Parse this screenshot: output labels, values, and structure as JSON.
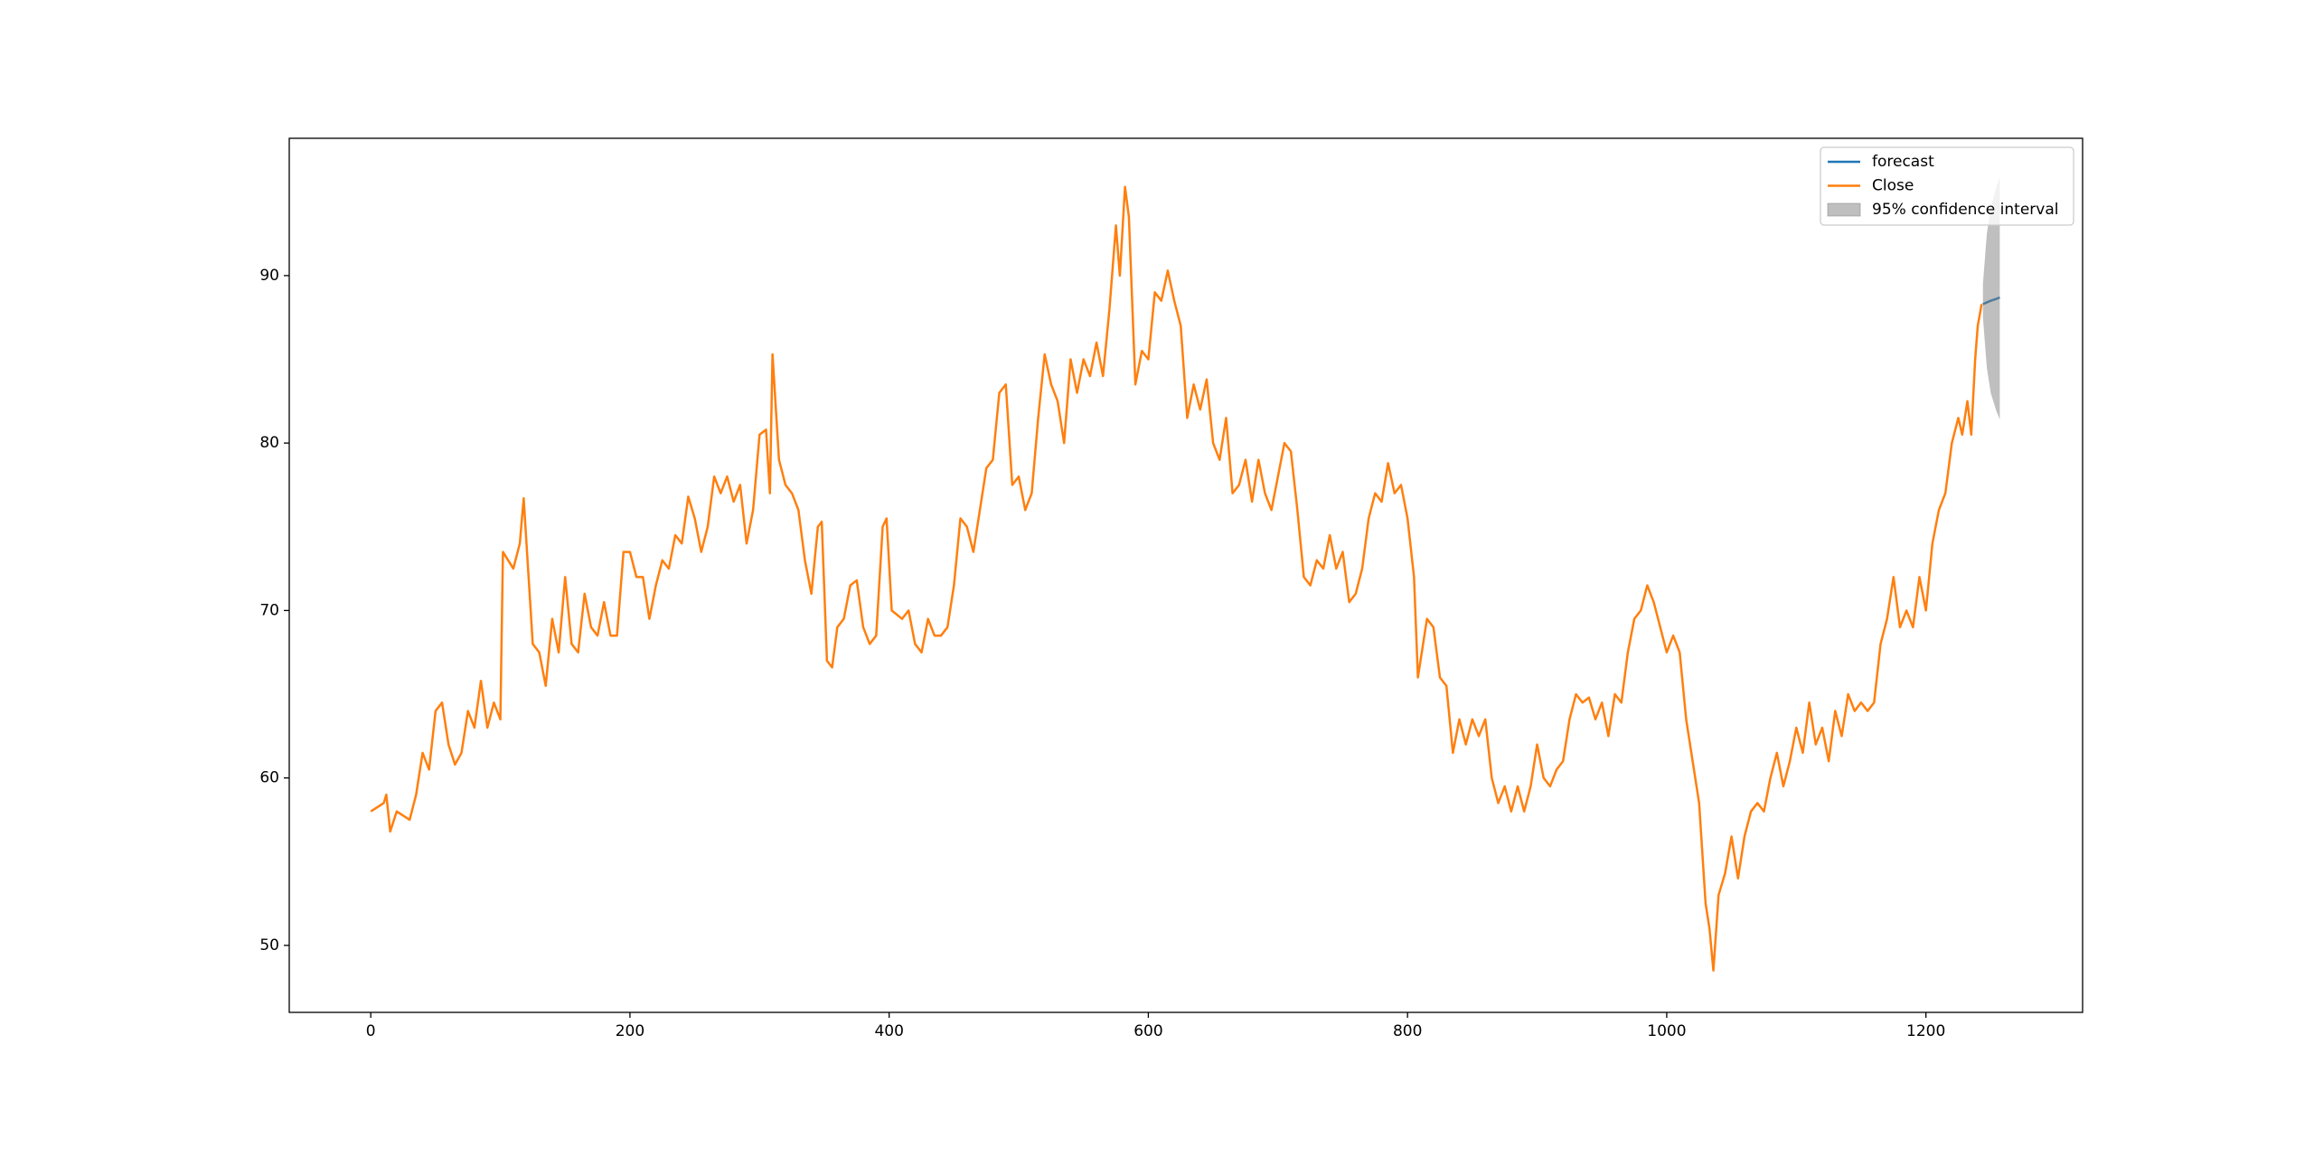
{
  "chart_data": {
    "type": "line",
    "xlim": [
      -62.9,
      1320.9
    ],
    "ylim": [
      46.0,
      98.2
    ],
    "xticks": [
      0,
      200,
      400,
      600,
      800,
      1000,
      1200
    ],
    "yticks": [
      50,
      60,
      70,
      80,
      90
    ],
    "legend": "upper right",
    "series": [
      {
        "name": "forecast",
        "color": "#1f77b4",
        "x": [
          1244,
          1247,
          1250,
          1254,
          1257
        ],
        "values": [
          88.3,
          88.4,
          88.5,
          88.6,
          88.7
        ]
      },
      {
        "name": "Close",
        "color": "#ff7f0e",
        "x": [
          0,
          10,
          12,
          15,
          20,
          30,
          35,
          40,
          45,
          50,
          55,
          60,
          65,
          70,
          75,
          80,
          85,
          90,
          95,
          100,
          102,
          110,
          115,
          118,
          125,
          130,
          135,
          140,
          145,
          150,
          155,
          160,
          165,
          170,
          175,
          180,
          185,
          190,
          195,
          200,
          205,
          210,
          215,
          220,
          225,
          230,
          235,
          240,
          245,
          250,
          255,
          260,
          265,
          270,
          275,
          280,
          285,
          290,
          295,
          300,
          305,
          308,
          310,
          315,
          320,
          325,
          330,
          335,
          340,
          345,
          348,
          352,
          356,
          360,
          365,
          370,
          375,
          380,
          385,
          390,
          395,
          398,
          402,
          410,
          415,
          420,
          425,
          430,
          435,
          440,
          445,
          450,
          455,
          460,
          465,
          470,
          475,
          480,
          485,
          490,
          495,
          500,
          505,
          510,
          515,
          520,
          525,
          530,
          535,
          540,
          545,
          550,
          555,
          560,
          565,
          570,
          575,
          578,
          582,
          585,
          590,
          595,
          600,
          605,
          610,
          615,
          620,
          625,
          630,
          635,
          640,
          645,
          650,
          655,
          660,
          665,
          670,
          675,
          680,
          685,
          690,
          695,
          700,
          705,
          710,
          715,
          720,
          725,
          730,
          735,
          740,
          745,
          750,
          755,
          760,
          765,
          770,
          775,
          780,
          785,
          790,
          795,
          800,
          805,
          808,
          812,
          815,
          820,
          825,
          830,
          835,
          840,
          845,
          850,
          855,
          860,
          865,
          870,
          875,
          880,
          885,
          890,
          895,
          900,
          905,
          910,
          915,
          920,
          925,
          930,
          935,
          940,
          945,
          950,
          955,
          960,
          965,
          970,
          975,
          980,
          985,
          990,
          995,
          1000,
          1005,
          1010,
          1015,
          1020,
          1025,
          1030,
          1033,
          1036,
          1040,
          1045,
          1050,
          1055,
          1060,
          1065,
          1070,
          1075,
          1080,
          1085,
          1090,
          1095,
          1100,
          1105,
          1110,
          1115,
          1120,
          1125,
          1130,
          1135,
          1140,
          1145,
          1150,
          1155,
          1160,
          1165,
          1170,
          1175,
          1180,
          1185,
          1190,
          1195,
          1200,
          1205,
          1210,
          1215,
          1220,
          1225,
          1228,
          1232,
          1235,
          1238,
          1240,
          1243
        ],
        "values": [
          58,
          58.5,
          59,
          56.8,
          58,
          57.5,
          59,
          61.5,
          60.5,
          64,
          64.5,
          62,
          60.8,
          61.5,
          64,
          63,
          65.8,
          63,
          64.5,
          63.5,
          73.5,
          72.5,
          74,
          76.7,
          68,
          67.5,
          65.5,
          69.5,
          67.5,
          72,
          68,
          67.5,
          71,
          69,
          68.5,
          70.5,
          68.5,
          68.5,
          73.5,
          73.5,
          72,
          72,
          69.5,
          71.5,
          73,
          72.5,
          74.5,
          74,
          76.8,
          75.5,
          73.5,
          75,
          78,
          77,
          78,
          76.5,
          77.5,
          74,
          76,
          80.5,
          80.8,
          77,
          85.3,
          79,
          77.5,
          77,
          76,
          73,
          71,
          75,
          75.3,
          67,
          66.6,
          69,
          69.5,
          71.5,
          71.8,
          69,
          68,
          68.5,
          75,
          75.5,
          70,
          69.5,
          70,
          68,
          67.5,
          69.5,
          68.5,
          68.5,
          69,
          71.5,
          75.5,
          75,
          73.5,
          76,
          78.5,
          79,
          83,
          83.5,
          77.5,
          78,
          76,
          77,
          81.5,
          85.3,
          83.5,
          82.5,
          80,
          85,
          83,
          85,
          84,
          86,
          84,
          88,
          93,
          90,
          95.3,
          93.5,
          83.5,
          85.5,
          85,
          89,
          88.5,
          90.3,
          88.5,
          87,
          81.5,
          83.5,
          82,
          83.8,
          80,
          79,
          81.5,
          77,
          77.5,
          79,
          76.5,
          79,
          77,
          76,
          78,
          80,
          79.5,
          76,
          72,
          71.5,
          73,
          72.5,
          74.5,
          72.5,
          73.5,
          70.5,
          71,
          72.5,
          75.5,
          77,
          76.5,
          78.8,
          77,
          77.5,
          75.5,
          72,
          66,
          68,
          69.5,
          69,
          66,
          65.5,
          61.5,
          63.5,
          62,
          63.5,
          62.5,
          63.5,
          60,
          58.5,
          59.5,
          58,
          59.5,
          58,
          59.5,
          62,
          60,
          59.5,
          60.5,
          61,
          63.5,
          65,
          64.5,
          64.8,
          63.5,
          64.5,
          62.5,
          65,
          64.5,
          67.5,
          69.5,
          70,
          71.5,
          70.5,
          69,
          67.5,
          68.5,
          67.5,
          63.5,
          61,
          58.5,
          52.5,
          51,
          48.5,
          53,
          54.3,
          56.5,
          54,
          56.5,
          58,
          58.5,
          58,
          60,
          61.5,
          59.5,
          61,
          63,
          61.5,
          64.5,
          62,
          63,
          61,
          64,
          62.5,
          65,
          64,
          64.5,
          64,
          64.5,
          68,
          69.5,
          72,
          69,
          70,
          69,
          72,
          70,
          74,
          76,
          77,
          80,
          81.5,
          80.5,
          82.5,
          80.5,
          85,
          87,
          88.3
        ]
      }
    ],
    "band": {
      "name": "95% confidence interval",
      "color": "#808080",
      "x": [
        1244,
        1247,
        1250,
        1254,
        1257
      ],
      "lower": [
        87.5,
        84.5,
        83,
        82,
        81.4
      ],
      "upper": [
        89.5,
        92.5,
        94,
        95.2,
        95.9
      ]
    }
  }
}
